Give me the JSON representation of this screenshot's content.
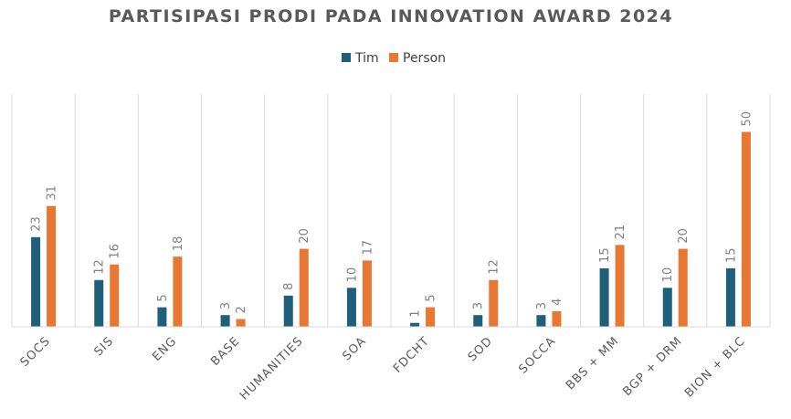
{
  "chart_data": {
    "type": "bar",
    "title": "PARTISIPASI PRODI PADA INNOVATION AWARD 2024",
    "xlabel": "",
    "ylabel": "",
    "ylim": [
      0,
      55
    ],
    "legend_position": "top",
    "grid": "vertical category separators",
    "categories": [
      "SOCS",
      "SIS",
      "ENG",
      "BASE",
      "HUMANITIES",
      "SOA",
      "FDCHT",
      "SOD",
      "SOCCA",
      "BBS + MM",
      "BGP + DRM",
      "BION + BLC"
    ],
    "series": [
      {
        "name": "Tim",
        "color": "#1f5f7a",
        "values": [
          23,
          12,
          5,
          3,
          8,
          10,
          1,
          3,
          3,
          15,
          10,
          15
        ]
      },
      {
        "name": "Person",
        "color": "#e87733",
        "values": [
          31,
          16,
          18,
          2,
          20,
          17,
          5,
          12,
          4,
          21,
          20,
          50
        ]
      }
    ]
  }
}
